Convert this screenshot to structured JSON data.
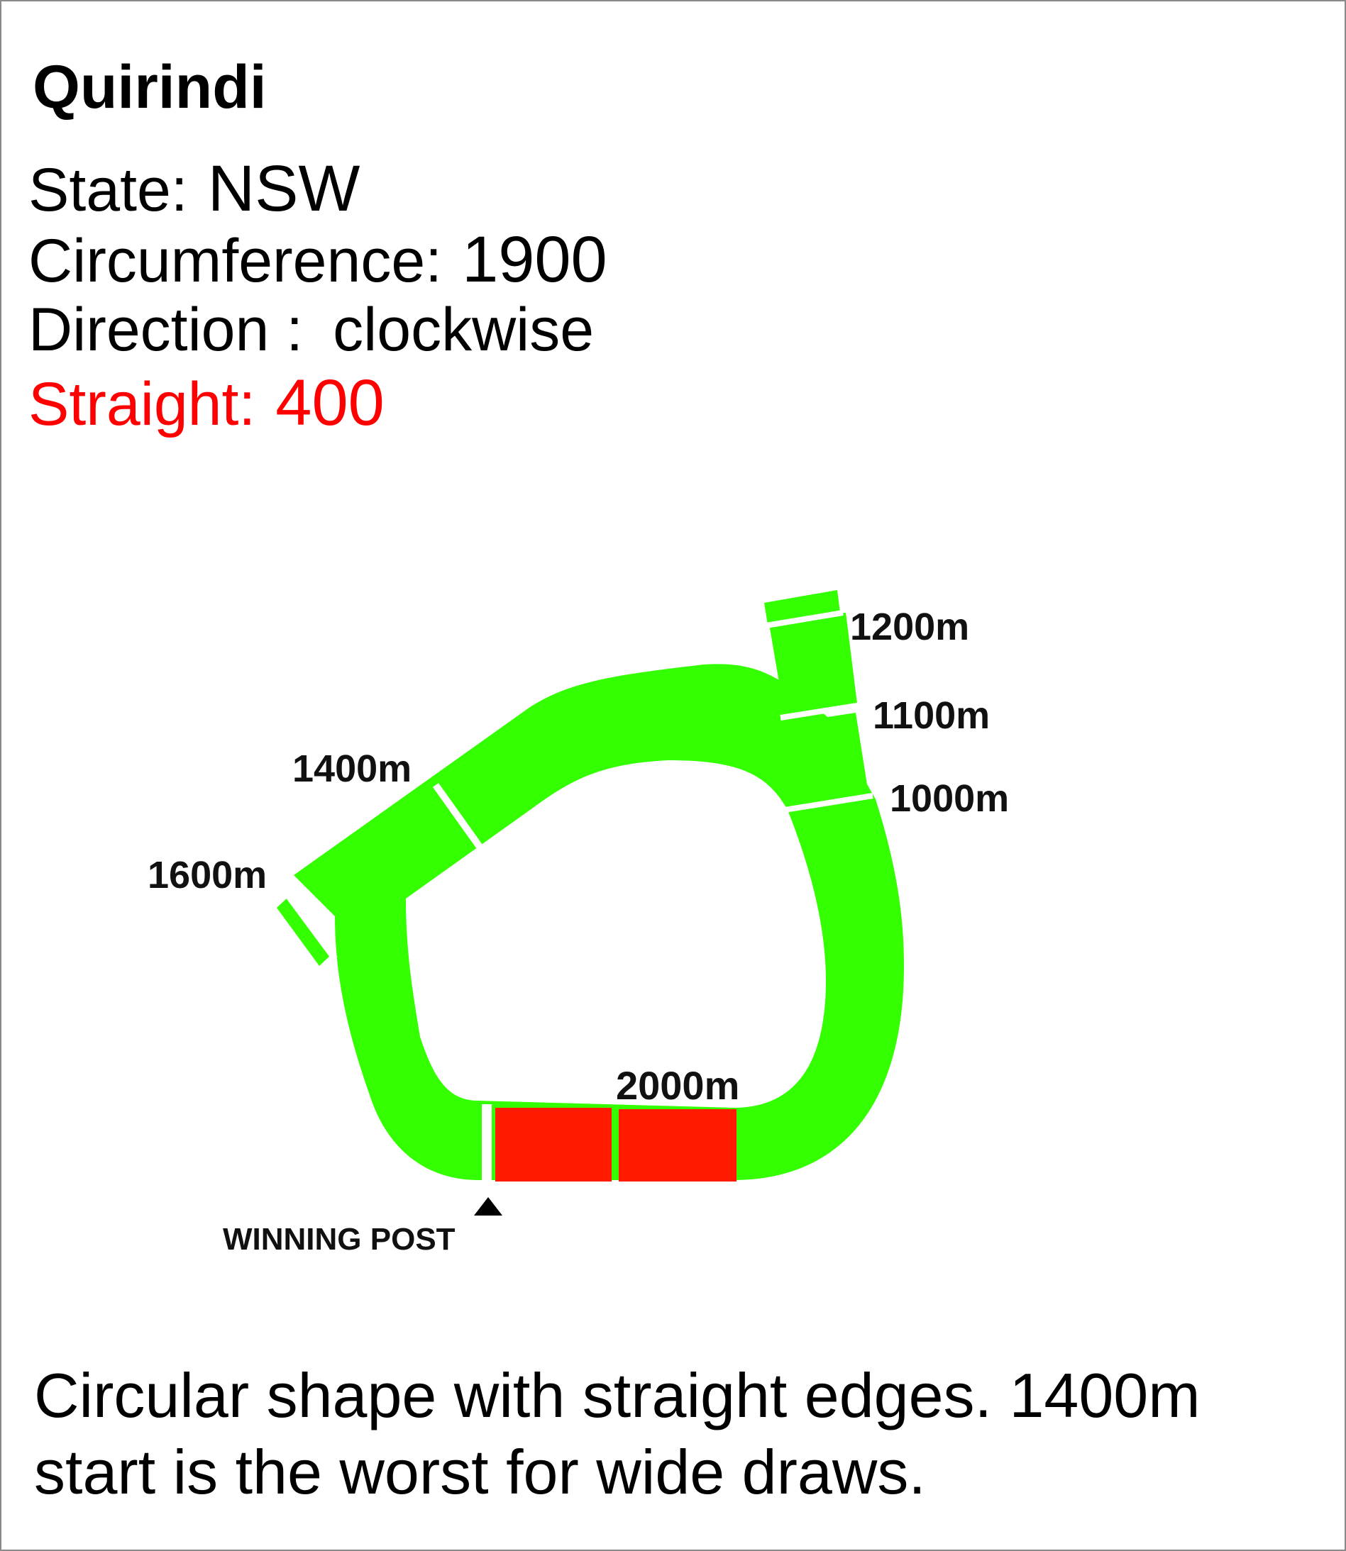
{
  "track": {
    "name": "Quirindi",
    "state_label": "State:",
    "state_value": "NSW",
    "circumference_label": "Circumference:",
    "circumference_value": "1900",
    "direction_label": "Direction :",
    "direction_value": "clockwise",
    "straight_label": "Straight:",
    "straight_value": "400"
  },
  "markers": {
    "m1200": "1200m",
    "m1100": "1100m",
    "m1000": "1000m",
    "m1400": "1400m",
    "m1600": "1600m",
    "m2000": "2000m",
    "winning_post": "WINNING POST"
  },
  "colors": {
    "track": "#33ff00",
    "straight": "#ff1a00",
    "text_highlight": "#ff0000"
  },
  "description": "Circular shape with straight edges. 1400m start is the worst for wide draws."
}
